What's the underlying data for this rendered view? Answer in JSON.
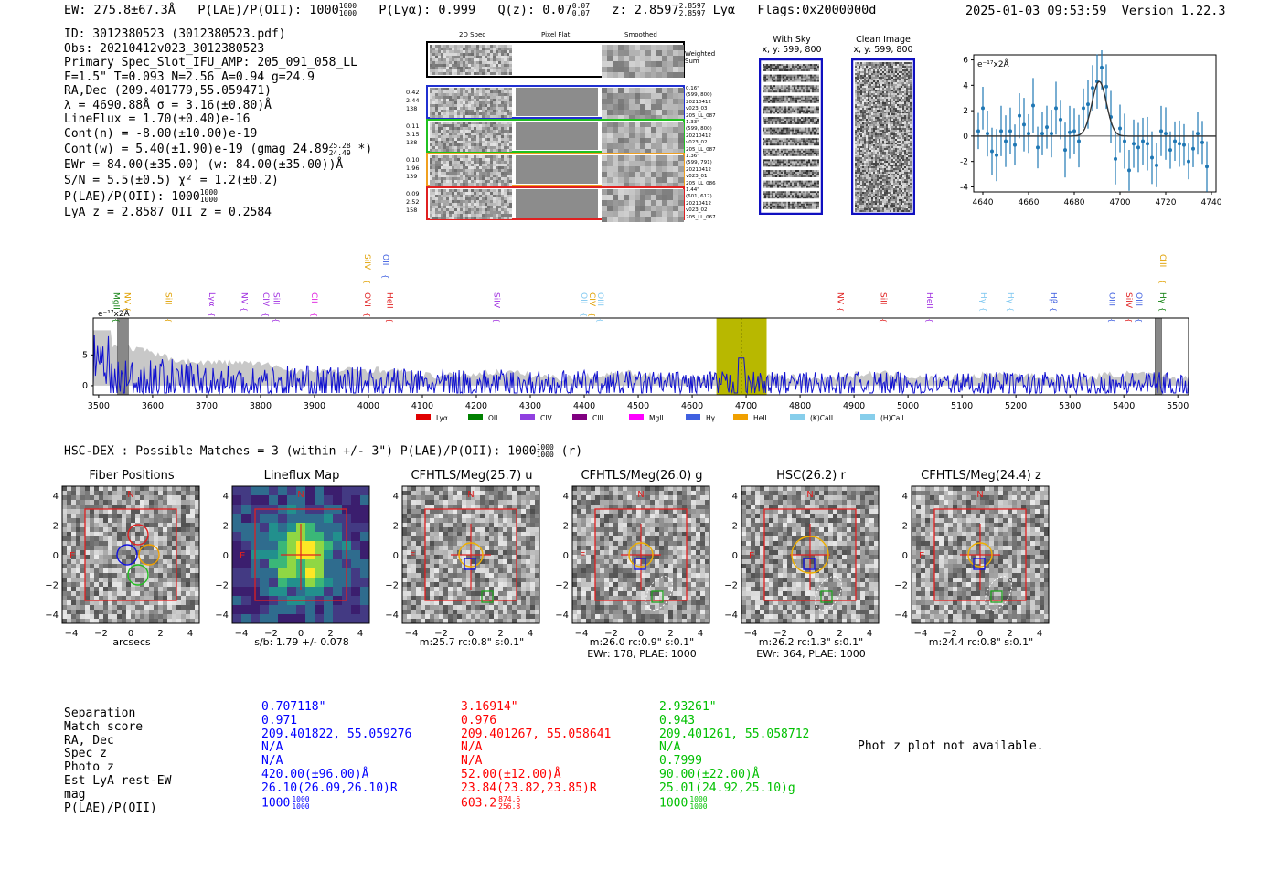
{
  "header": {
    "ew": "EW: 275.8±67.3Å",
    "plae_label": "P(LAE)/P(OII): 1000",
    "plae_hi": "1000",
    "plae_lo": "1000",
    "plya": "P(Lyα): 0.999",
    "qz_label": "Q(z): 0.07",
    "qz_hi": "0.07",
    "qz_lo": "0.07",
    "z_label": "z: 2.8597",
    "z_hi": "2.8597",
    "z_lo": "2.8597",
    "line": "Lyα",
    "flags": "Flags:0x2000000d",
    "datetime": "2025-01-03 09:53:59",
    "version": "Version 1.22.3"
  },
  "info": {
    "id": "ID: 3012380523 (3012380523.pdf)",
    "obs": "Obs: 20210412v023_3012380523",
    "primary": "Primary Spec_Slot_IFU_AMP: 205_091_058_LL",
    "params": "F=1.5\"  T=0.093  N=2.56  A=0.94  g=24.9",
    "radec": "RA,Dec (209.401779,55.059471)",
    "lambda": "λ = 4690.88Å  σ = 3.16(±0.80)Å",
    "lineflux": "LineFlux = 1.70(±0.40)e-16",
    "contn": "Cont(n) = -8.00(±10.00)e-19",
    "contw": "Cont(w) = 5.40(±1.90)e-19 (gmag 24.89",
    "contw_hi": "25.28",
    "contw_lo": "24.49",
    "contw_end": "*)",
    "ewr": "EWr = 84.00(±35.00) (w: 84.00(±35.00))Å",
    "sn": "S/N = 5.5(±0.5)  χ² = 1.2(±0.2)",
    "plae": "P(LAE)/P(OII): 1000",
    "plae_hi": "1000",
    "plae_lo": "1000",
    "lyaz": "LyA z = 2.8587  OII z = 0.2584"
  },
  "cutouts": {
    "col_2d": "2D Spec",
    "col_flat": "Pixel Flat",
    "col_smooth": "Smoothed",
    "weighted": "Weighted Sum",
    "rows": [
      {
        "left": [
          "0.42",
          "2.44",
          "138"
        ],
        "right": [
          "0.16\"",
          "(599, 800)",
          "20210412",
          "v023_03",
          "205_LL_087"
        ],
        "color": "#2030d0"
      },
      {
        "left": [
          "0.11",
          "3.15",
          "138"
        ],
        "right": [
          "1.33\"",
          "(599, 800)",
          "20210412",
          "v023_02",
          "205_LL_087"
        ],
        "color": "#20c020"
      },
      {
        "left": [
          "0.10",
          "1.96",
          "139"
        ],
        "right": [
          "1.36\"",
          "(599, 791)",
          "20210412",
          "v023_01",
          "205_LL_086"
        ],
        "color": "#f0a020"
      },
      {
        "left": [
          "0.09",
          "2.52",
          "158"
        ],
        "right": [
          "1.44\"",
          "(601, 617)",
          "20210412",
          "v023_02",
          "205_LL_067"
        ],
        "color": "#e02020"
      }
    ],
    "with_sky_title": "With Sky",
    "with_sky_xy": "x, y: 599, 800",
    "clean_title": "Clean Image",
    "clean_xy": "x, y: 599, 800"
  },
  "line_fit_chart": {
    "type": "scatter",
    "ylabel": "e⁻¹⁷x2Å",
    "xlim": [
      4636,
      4742
    ],
    "ylim": [
      -4.4,
      6.4
    ],
    "xticks": [
      "4640",
      "4660",
      "4680",
      "4700",
      "4720",
      "4740"
    ],
    "yticks": [
      "6",
      "4",
      "2",
      "0",
      "-2",
      "-4"
    ],
    "points": [
      [
        4638,
        0.4
      ],
      [
        4640,
        2.2
      ],
      [
        4642,
        0.2
      ],
      [
        4644,
        -1.2
      ],
      [
        4646,
        -1.5
      ],
      [
        4648,
        0.4
      ],
      [
        4650,
        -0.4
      ],
      [
        4652,
        0.4
      ],
      [
        4654,
        -0.7
      ],
      [
        4656,
        1.6
      ],
      [
        4658,
        0.9
      ],
      [
        4660,
        0.2
      ],
      [
        4662,
        2.4
      ],
      [
        4664,
        -0.9
      ],
      [
        4666,
        0.2
      ],
      [
        4668,
        0.7
      ],
      [
        4670,
        0.2
      ],
      [
        4672,
        2.2
      ],
      [
        4674,
        1.3
      ],
      [
        4676,
        -1.1
      ],
      [
        4678,
        0.3
      ],
      [
        4680,
        0.4
      ],
      [
        4682,
        -0.4
      ],
      [
        4684,
        2.2
      ],
      [
        4686,
        2.5
      ],
      [
        4688,
        3.8
      ],
      [
        4690,
        4.3
      ],
      [
        4692,
        5.4
      ],
      [
        4694,
        3.9
      ],
      [
        4696,
        1.5
      ],
      [
        4698,
        -1.8
      ],
      [
        4700,
        0.6
      ],
      [
        4702,
        -0.4
      ],
      [
        4704,
        -2.7
      ],
      [
        4706,
        -0.6
      ],
      [
        4708,
        -0.9
      ],
      [
        4710,
        -0.4
      ],
      [
        4712,
        -0.6
      ],
      [
        4714,
        -1.7
      ],
      [
        4716,
        -2.3
      ],
      [
        4718,
        0.4
      ],
      [
        4720,
        0.2
      ],
      [
        4722,
        -1.1
      ],
      [
        4724,
        -0.4
      ],
      [
        4726,
        -0.6
      ],
      [
        4728,
        -0.7
      ],
      [
        4730,
        -2.0
      ],
      [
        4732,
        -1.0
      ],
      [
        4734,
        0.2
      ],
      [
        4736,
        -0.5
      ],
      [
        4738,
        -2.4
      ]
    ],
    "fit": {
      "center": 4690.9,
      "sigma": 3.16,
      "amp": 4.3
    }
  },
  "chart_data": {
    "type": "line",
    "title": "",
    "ylabel": "e⁻¹⁷x2Å",
    "xlim": [
      3490,
      5520
    ],
    "ylim": [
      -1.5,
      11
    ],
    "xticks": [
      "3500",
      "3600",
      "3700",
      "3800",
      "3900",
      "4000",
      "4100",
      "4200",
      "4300",
      "4400",
      "4500",
      "4600",
      "4700",
      "4800",
      "4900",
      "5000",
      "5100",
      "5200",
      "5300",
      "5400",
      "5500"
    ],
    "yticks": [
      "5",
      "0"
    ],
    "highlight": {
      "xmin": 4645,
      "xmax": 4738,
      "center": 4691
    },
    "gray_bands": [
      [
        3535,
        3555
      ],
      [
        5458,
        5470
      ]
    ],
    "line_markers": [
      {
        "label": "MgII",
        "x": 3523,
        "color": "#108010",
        "tall": false
      },
      {
        "label": "NV",
        "x": 3543,
        "color": "#e0a000",
        "tall": false
      },
      {
        "label": "SiII",
        "x": 3620,
        "color": "#e0a000",
        "tall": false
      },
      {
        "label": "Lyα",
        "x": 3700,
        "color": "#a030e0",
        "tall": false
      },
      {
        "label": "NV",
        "x": 3760,
        "color": "#a030e0",
        "tall": false
      },
      {
        "label": "CIV",
        "x": 3800,
        "color": "#a030e0",
        "tall": false
      },
      {
        "label": "SiII",
        "x": 3820,
        "color": "#a030e0",
        "tall": false
      },
      {
        "label": "CII",
        "x": 3890,
        "color": "#e020e0",
        "tall": false
      },
      {
        "label": "SiIV",
        "x": 3988,
        "color": "#e0a000",
        "tall": true
      },
      {
        "label": "OVI",
        "x": 3988,
        "color": "#e02020",
        "tall": false
      },
      {
        "label": "OII",
        "x": 4022,
        "color": "#4060e0",
        "tall": true
      },
      {
        "label": "HeII",
        "x": 4030,
        "color": "#e02020",
        "tall": false
      },
      {
        "label": "SiIV",
        "x": 4228,
        "color": "#a030e0",
        "tall": false
      },
      {
        "label": "OII",
        "x": 4390,
        "color": "#80c8f0",
        "tall": false
      },
      {
        "label": "CIV",
        "x": 4405,
        "color": "#e0a000",
        "tall": false
      },
      {
        "label": "OIII",
        "x": 4420,
        "color": "#80c8f0",
        "tall": false
      },
      {
        "label": "NV",
        "x": 4865,
        "color": "#e02020",
        "tall": false
      },
      {
        "label": "SiII",
        "x": 4945,
        "color": "#e02020",
        "tall": false
      },
      {
        "label": "HeII",
        "x": 5030,
        "color": "#a030e0",
        "tall": false
      },
      {
        "label": "Hγ",
        "x": 5130,
        "color": "#80c8f0",
        "tall": false
      },
      {
        "label": "Hγ",
        "x": 5180,
        "color": "#80c8f0",
        "tall": false
      },
      {
        "label": "Hβ",
        "x": 5260,
        "color": "#4060e0",
        "tall": false
      },
      {
        "label": "OIII",
        "x": 5368,
        "color": "#4060e0",
        "tall": false
      },
      {
        "label": "SiIV",
        "x": 5400,
        "color": "#e02020",
        "tall": false
      },
      {
        "label": "OIII",
        "x": 5418,
        "color": "#4060e0",
        "tall": false
      },
      {
        "label": "CIII",
        "x": 5462,
        "color": "#e0a000",
        "tall": true
      },
      {
        "label": "Hγ",
        "x": 5462,
        "color": "#108010",
        "tall": false
      }
    ],
    "legend": [
      {
        "label": "Lyα",
        "color": "#e00000"
      },
      {
        "label": "OII",
        "color": "#008000"
      },
      {
        "label": "CIV",
        "color": "#9040e0"
      },
      {
        "label": "CIII",
        "color": "#800080"
      },
      {
        "label": "MgII",
        "color": "#ff00ff"
      },
      {
        "label": "Hγ",
        "color": "#4060e0"
      },
      {
        "label": "HeII",
        "color": "#f0a000"
      },
      {
        "label": "(K)CaII",
        "color": "#87ceeb"
      },
      {
        "label": "(H)CaII",
        "color": "#87ceeb"
      }
    ],
    "series": [
      {
        "name": "flux",
        "color": "#1010d0"
      },
      {
        "name": "error",
        "color": "#c0c0c0"
      }
    ]
  },
  "hsc": {
    "title": "HSC-DEX : Possible Matches = 3 (within +/- 3\")  P(LAE)/P(OII): 1000",
    "title_hi": "1000",
    "title_lo": "1000",
    "title_end": "(r)",
    "panels": [
      {
        "title": "Fiber Positions",
        "cap1": "arcsecs",
        "cap2": ""
      },
      {
        "title": "Lineflux Map",
        "cap1": "s/b: 1.79 +/- 0.078",
        "cap2": ""
      },
      {
        "title": "CFHTLS/Meg(25.7) u",
        "cap1": "m:25.7 rc:0.8\"  s:0.1\"",
        "cap2": ""
      },
      {
        "title": "CFHTLS/Meg(26.0) g",
        "cap1": "m:26.0 rc:0.9\"  s:0.1\"",
        "cap2": "EWr: 178, PLAE: 1000"
      },
      {
        "title": "HSC(26.2) r",
        "cap1": "m:26.2 rc:1.3\"  s:0.1\"",
        "cap2": "EWr: 364, PLAE: 1000"
      },
      {
        "title": "CFHTLS/Meg(24.4) z",
        "cap1": "m:24.4 rc:0.8\"  s:0.1\"",
        "cap2": ""
      }
    ],
    "axis_ticks": [
      "-4",
      "-2",
      "0",
      "2",
      "4"
    ],
    "compass_n": "N",
    "compass_e": "E"
  },
  "matches": {
    "labels": [
      "Separation",
      "Match score",
      "RA, Dec",
      "Spec z",
      "Photo z",
      "Est LyA rest-EW",
      "mag",
      "P(LAE)/P(OII)"
    ],
    "columns": [
      {
        "color": "#0000ff",
        "values": [
          "0.707118\"",
          "0.971",
          "209.401822, 55.059276",
          "N/A",
          "N/A",
          "420.00(±96.00)Å",
          "26.10(26.09,26.10)R",
          "1000"
        ],
        "plae_hi": "1000",
        "plae_lo": "1000"
      },
      {
        "color": "#ff0000",
        "values": [
          "3.16914\"",
          "0.976",
          "209.401267, 55.058641",
          "N/A",
          "N/A",
          "52.00(±12.00)Å",
          "23.84(23.82,23.85)R",
          "603.2"
        ],
        "plae_hi": "874.6",
        "plae_lo": "256.8"
      },
      {
        "color": "#00c000",
        "values": [
          "2.93261\"",
          "0.943",
          "209.401261, 55.058712",
          "N/A",
          "0.7999",
          "90.00(±22.00)Å",
          "25.01(24.92,25.10)g",
          "1000"
        ],
        "plae_hi": "1000",
        "plae_lo": "1000"
      }
    ],
    "photz_note": "Phot z plot not available."
  }
}
